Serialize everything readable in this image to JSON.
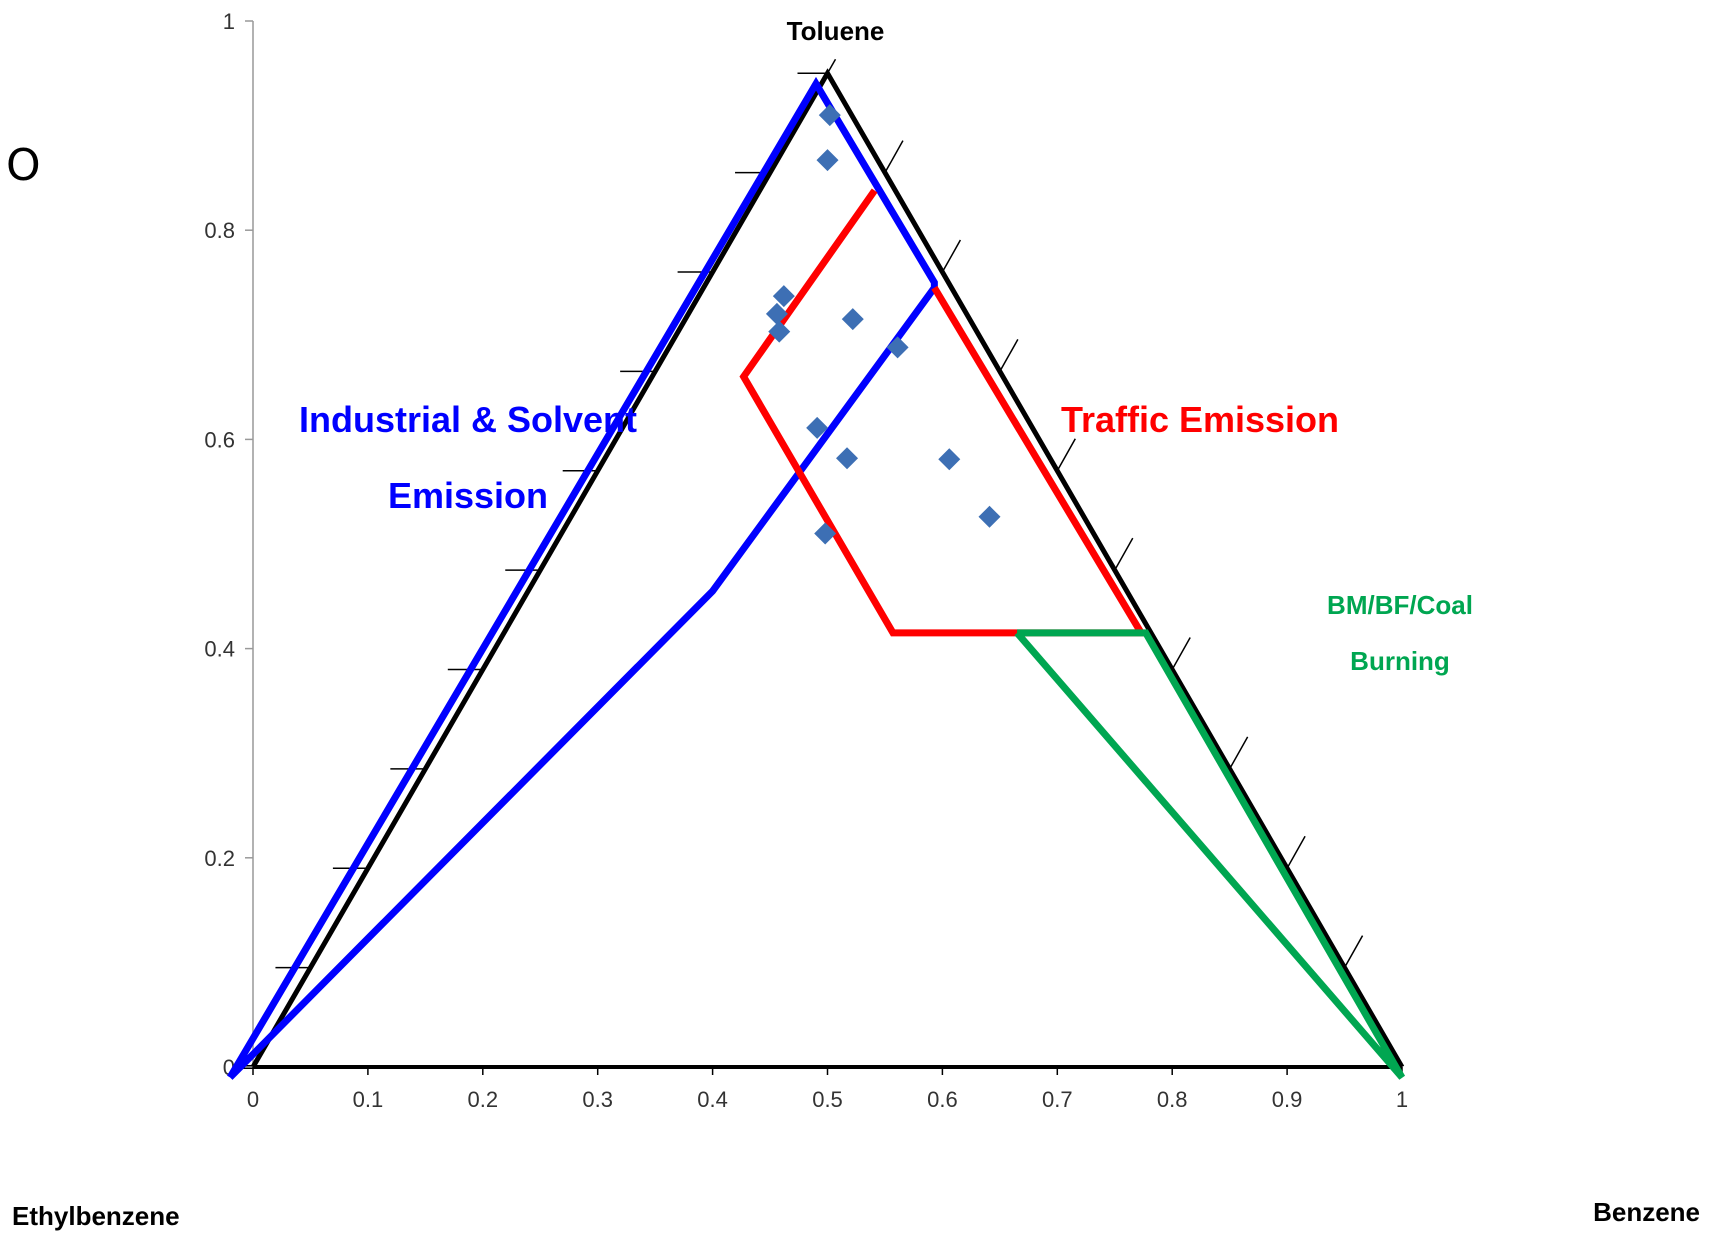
{
  "panel_label": "O",
  "chart_data": {
    "type": "scatter",
    "title": "",
    "xlabel": "",
    "ylabel": "",
    "xlim": [
      0,
      1
    ],
    "ylim": [
      0,
      1
    ],
    "x_ticks": [
      "0",
      "0.1",
      "0.2",
      "0.3",
      "0.4",
      "0.5",
      "0.6",
      "0.7",
      "0.8",
      "0.9",
      "1"
    ],
    "y_ticks": [
      "0",
      "0.2",
      "0.4",
      "0.6",
      "0.8",
      "1"
    ],
    "grid": false,
    "corner_labels": {
      "top": "Toluene",
      "bottom_left": "Ethylbenzene",
      "bottom_right": "Benzene"
    },
    "triangle": [
      [
        0,
        0
      ],
      [
        0.5,
        0.95
      ],
      [
        1,
        0
      ]
    ],
    "points": [
      {
        "x": 0.502,
        "y": 0.91
      },
      {
        "x": 0.5,
        "y": 0.867
      },
      {
        "x": 0.462,
        "y": 0.737
      },
      {
        "x": 0.456,
        "y": 0.72
      },
      {
        "x": 0.458,
        "y": 0.703
      },
      {
        "x": 0.522,
        "y": 0.715
      },
      {
        "x": 0.561,
        "y": 0.688
      },
      {
        "x": 0.491,
        "y": 0.611
      },
      {
        "x": 0.517,
        "y": 0.582
      },
      {
        "x": 0.606,
        "y": 0.581
      },
      {
        "x": 0.641,
        "y": 0.526
      },
      {
        "x": 0.498,
        "y": 0.51
      }
    ],
    "regions": [
      {
        "name": "Industrial & Solvent Emission",
        "label_lines": [
          "Industrial & Solvent",
          "Emission"
        ],
        "color": "#0000ff",
        "path": [
          [
            -0.02,
            -0.01
          ],
          [
            0.49,
            0.94
          ],
          [
            0.593,
            0.75
          ],
          [
            0.593,
            0.745
          ],
          [
            0.4,
            0.455
          ],
          [
            -0.02,
            -0.01
          ]
        ]
      },
      {
        "name": "Traffic Emission",
        "label_lines": [
          "Traffic Emission"
        ],
        "color": "#ff0000",
        "path": [
          [
            0.541,
            0.838
          ],
          [
            0.427,
            0.66
          ],
          [
            0.557,
            0.415
          ],
          [
            0.773,
            0.415
          ],
          [
            0.593,
            0.745
          ]
        ]
      },
      {
        "name": "BM/BF/Coal Burning",
        "label_lines": [
          "BM/BF/Coal",
          "Burning"
        ],
        "color": "#00a651",
        "path": [
          [
            0.665,
            0.415
          ],
          [
            0.777,
            0.415
          ],
          [
            1.0,
            -0.01
          ],
          [
            0.665,
            0.415
          ]
        ]
      }
    ],
    "point_color": "#3d6fb4",
    "triangle_color": "#000000"
  }
}
